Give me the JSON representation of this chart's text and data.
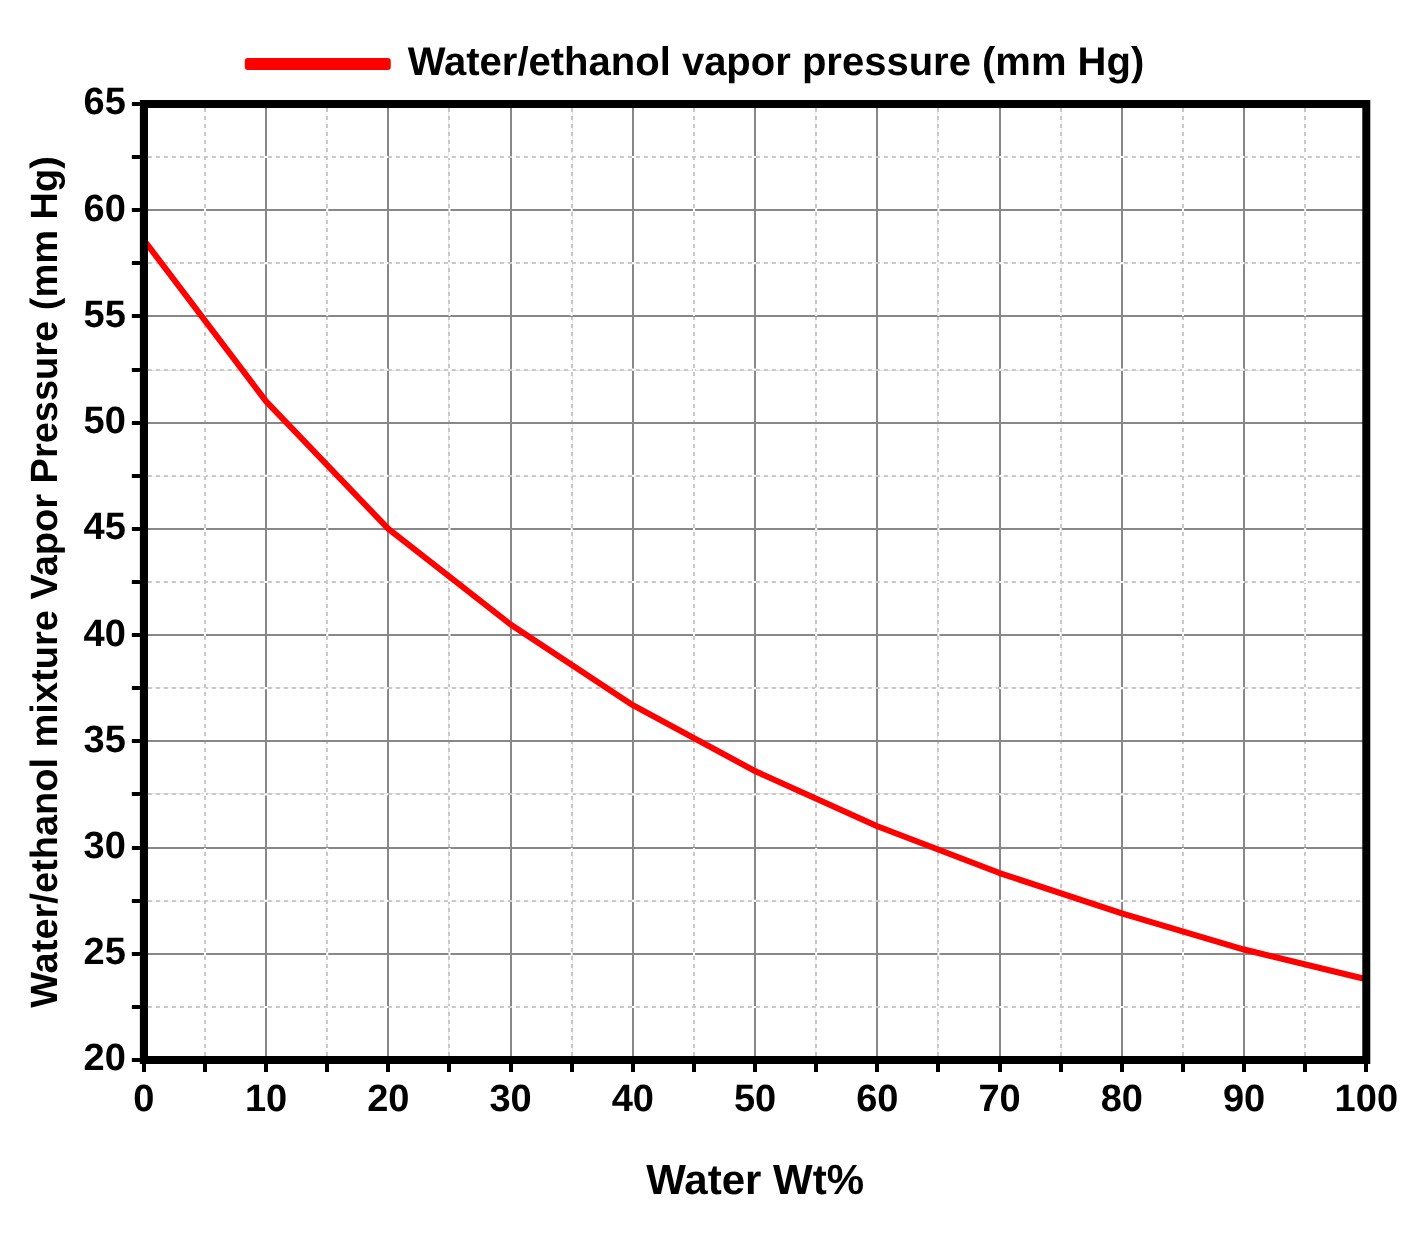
{
  "chart_data": {
    "type": "line",
    "xlabel": "Water Wt%",
    "ylabel": "Water/ethanol mixture Vapor Pressure (mm Hg)",
    "x": [
      0,
      10,
      20,
      30,
      40,
      50,
      60,
      70,
      80,
      90,
      100
    ],
    "series": [
      {
        "name": "Water/ethanol vapor pressure (mm Hg)",
        "color": "#ff0000",
        "values": [
          58.6,
          51,
          45,
          40.5,
          36.7,
          33.6,
          31,
          28.8,
          26.9,
          25.2,
          23.8
        ]
      }
    ],
    "xlim": [
      0,
      100
    ],
    "ylim": [
      20,
      65
    ],
    "xticks": [
      0,
      {
        "value": 5,
        "label": null
      },
      10,
      {
        "value": 15,
        "label": null
      },
      20,
      {
        "value": 25,
        "label": null
      },
      30,
      {
        "value": 35,
        "label": null
      },
      40,
      {
        "value": 45,
        "label": null
      },
      50,
      {
        "value": 55,
        "label": null
      },
      60,
      {
        "value": 65,
        "label": null
      },
      70,
      {
        "value": 75,
        "label": null
      },
      80,
      {
        "value": 85,
        "label": null
      },
      90,
      {
        "value": 95,
        "label": null
      },
      100
    ],
    "yticks": [
      20,
      {
        "value": 22.5,
        "label": null
      },
      25,
      {
        "value": 27.5,
        "label": null
      },
      30,
      {
        "value": 32.5,
        "label": null
      },
      35,
      {
        "value": 37.5,
        "label": null
      },
      40,
      {
        "value": 42.5,
        "label": null
      },
      45,
      {
        "value": 47.5,
        "label": null
      },
      50,
      {
        "value": 52.5,
        "label": null
      },
      55,
      {
        "value": 57.5,
        "label": null
      },
      60,
      {
        "value": 62.5,
        "label": null
      },
      65
    ],
    "grid": true,
    "legend": "top",
    "marker": "none",
    "line_style": "solid"
  }
}
